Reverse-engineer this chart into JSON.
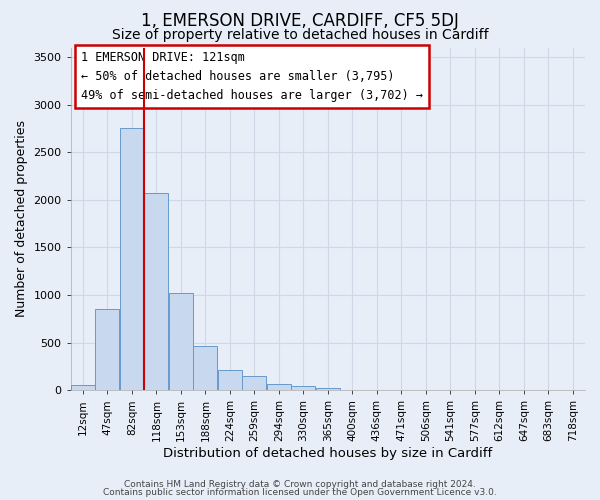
{
  "title": "1, EMERSON DRIVE, CARDIFF, CF5 5DJ",
  "subtitle": "Size of property relative to detached houses in Cardiff",
  "xlabel": "Distribution of detached houses by size in Cardiff",
  "ylabel": "Number of detached properties",
  "bar_values": [
    60,
    850,
    2750,
    2075,
    1020,
    460,
    215,
    150,
    70,
    40,
    20,
    5,
    3,
    2,
    1,
    0,
    0,
    0,
    0,
    0
  ],
  "bin_labels": [
    "12sqm",
    "47sqm",
    "82sqm",
    "118sqm",
    "153sqm",
    "188sqm",
    "224sqm",
    "259sqm",
    "294sqm",
    "330sqm",
    "365sqm",
    "400sqm",
    "436sqm",
    "471sqm",
    "506sqm",
    "541sqm",
    "577sqm",
    "612sqm",
    "647sqm",
    "683sqm",
    "718sqm"
  ],
  "bar_color": "#c8d8ee",
  "bar_edge_color": "#6699cc",
  "vline_x": 2.5,
  "vline_color": "#cc0000",
  "ylim": [
    0,
    3600
  ],
  "yticks": [
    0,
    500,
    1000,
    1500,
    2000,
    2500,
    3000,
    3500
  ],
  "annotation_title": "1 EMERSON DRIVE: 121sqm",
  "annotation_line1": "← 50% of detached houses are smaller (3,795)",
  "annotation_line2": "49% of semi-detached houses are larger (3,702) →",
  "annotation_box_color": "#ffffff",
  "annotation_box_edge": "#cc0000",
  "footnote1": "Contains HM Land Registry data © Crown copyright and database right 2024.",
  "footnote2": "Contains public sector information licensed under the Open Government Licence v3.0.",
  "background_color": "#e8eef8",
  "grid_color": "#d0d8e8",
  "title_fontsize": 12,
  "subtitle_fontsize": 10
}
